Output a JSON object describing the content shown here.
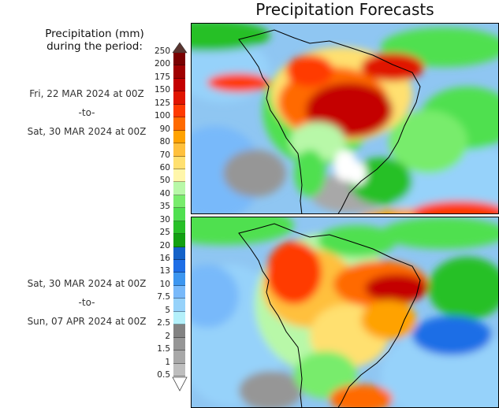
{
  "title": "Precipitation Forecasts",
  "legend": {
    "heading_line1": "Precipitation (mm)",
    "heading_line2": "during the period:",
    "labels": [
      "250",
      "200",
      "175",
      "150",
      "125",
      "100",
      "90",
      "80",
      "70",
      "60",
      "50",
      "40",
      "35",
      "30",
      "25",
      "20",
      "16",
      "13",
      "10",
      "7.5",
      "5",
      "2.5",
      "2",
      "1.5",
      "1",
      "0.5"
    ],
    "colors": [
      "#7a0000",
      "#a00000",
      "#c40000",
      "#e01400",
      "#ff3a00",
      "#ff6a00",
      "#ffa200",
      "#ffc03c",
      "#ffe070",
      "#fff6aa",
      "#b8f8a8",
      "#78ec6c",
      "#50e050",
      "#28c028",
      "#12a012",
      "#1462c8",
      "#1e6ee6",
      "#3c96f0",
      "#78b9fa",
      "#96d2fa",
      "#b4f0fa",
      "#828282",
      "#969696",
      "#a8a8a8",
      "#bebebe"
    ],
    "over_color": "#5a3530",
    "under_color": "#ffffff"
  },
  "periods": [
    {
      "start": "Fri, 22 MAR 2024 at 00Z",
      "sep": "-to-",
      "end": "Sat, 30 MAR 2024 at 00Z"
    },
    {
      "start": "Sat, 30 MAR 2024 at 00Z",
      "sep": "-to-",
      "end": "Sun, 07 APR 2024 at 00Z"
    }
  ]
}
